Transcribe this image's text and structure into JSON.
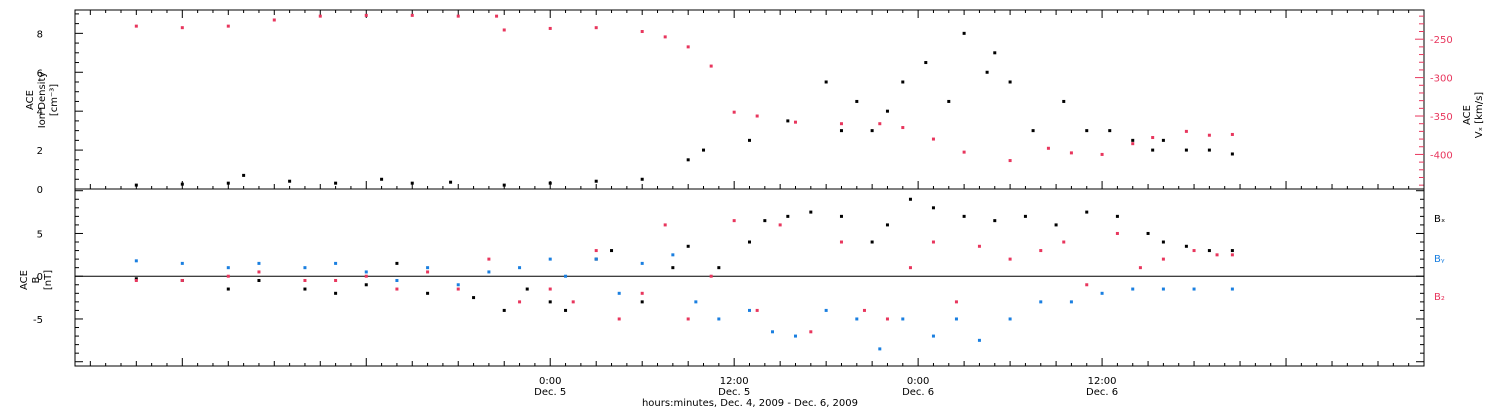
{
  "colors": {
    "black_series": "#000000",
    "red_series": "#e8365d",
    "blue_series": "#1a7fe0"
  },
  "chart_data": [
    {
      "type": "scatter",
      "panel": "top",
      "ylabel_lines": [
        "ACE",
        "Ion Density",
        "[cm⁻³]"
      ],
      "y_ticks": [
        "0",
        "2",
        "4",
        "6",
        "8"
      ],
      "ylim": [
        0,
        9.2
      ],
      "y2label_lines": [
        "ACE",
        "Vₓ [km/s]"
      ],
      "y2_ticks": [
        "-250",
        "-300",
        "-350",
        "-400"
      ],
      "y2lim": [
        -445,
        -212
      ],
      "series": [
        {
          "axis": "left",
          "color": "black",
          "x_hours": [
            -27,
            -24,
            -21,
            -20,
            -17,
            -14,
            -11,
            -9,
            -6.5,
            -3,
            0,
            3,
            6,
            9,
            10,
            13,
            15.5,
            18,
            19,
            20,
            21,
            22,
            23,
            24.5,
            26,
            27,
            28.5,
            29,
            30,
            31.5,
            33.5,
            35,
            36.5,
            38,
            39.3,
            40,
            41.5,
            43,
            44.5
          ],
          "values": [
            0.2,
            0.25,
            0.3,
            0.7,
            0.4,
            0.3,
            0.5,
            0.3,
            0.35,
            0.2,
            0.3,
            0.4,
            0.5,
            1.5,
            2.0,
            2.5,
            3.5,
            5.5,
            3.0,
            4.5,
            3.0,
            4.0,
            5.5,
            6.5,
            4.5,
            8.0,
            6.0,
            7.0,
            5.5,
            3.0,
            4.5,
            3.0,
            3.0,
            2.5,
            2.0,
            2.5,
            2.0,
            2.0,
            1.8
          ]
        },
        {
          "axis": "right",
          "color": "red",
          "x_hours": [
            -27,
            -24,
            -21,
            -18,
            -15,
            -12,
            -9,
            -6,
            -3.5,
            -3,
            0,
            3,
            6,
            7.5,
            9,
            10.5,
            12,
            13.5,
            16,
            19,
            21.5,
            23,
            25,
            27,
            30,
            32.5,
            34,
            36,
            38,
            39.3,
            41.5,
            43,
            44.5
          ],
          "values": [
            -233,
            -235,
            -233,
            -225,
            -220,
            -219,
            -219,
            -220,
            -220,
            -238,
            -236,
            -235,
            -240,
            -247,
            -260,
            -285,
            -345,
            -350,
            -358,
            -360,
            -360,
            -365,
            -380,
            -397,
            -408,
            -392,
            -398,
            -400,
            -386,
            -378,
            -370,
            -375,
            -374
          ]
        }
      ]
    },
    {
      "type": "scatter",
      "panel": "bottom",
      "ylabel_lines": [
        "ACE",
        "B",
        "[nT]"
      ],
      "y_ticks": [
        "5",
        "0",
        "-5"
      ],
      "ylim": [
        -10.5,
        10.2
      ],
      "zero_line": true,
      "legend": [
        "Bₓ",
        "Bᵧ",
        "B₂"
      ],
      "legend_placement": "right",
      "series": [
        {
          "name": "Bₓ",
          "color": "black",
          "x_hours": [
            -27,
            -24,
            -21,
            -19,
            -16,
            -14,
            -12,
            -10,
            -8,
            -5,
            -3,
            -1.5,
            0,
            1,
            3,
            4,
            6,
            8,
            9,
            11,
            13,
            14,
            15.5,
            17,
            19,
            21,
            22,
            23.5,
            25,
            27,
            29,
            31,
            33,
            35,
            37,
            39,
            40,
            41.5,
            43,
            44.5
          ],
          "values": [
            -0.3,
            -0.5,
            -1.5,
            -0.5,
            -1.5,
            -2.0,
            -1.0,
            1.5,
            -2.0,
            -2.5,
            -4.0,
            -1.5,
            -3.0,
            -4.0,
            2.0,
            3.0,
            -3.0,
            1.0,
            3.5,
            1.0,
            4.0,
            6.5,
            7.0,
            7.5,
            7.0,
            4.0,
            6.0,
            9.0,
            8.0,
            7.0,
            6.5,
            7.0,
            6.0,
            7.5,
            7.0,
            5.0,
            4.0,
            3.5,
            3.0,
            3.0
          ]
        },
        {
          "name": "Bᵧ",
          "color": "blue",
          "x_hours": [
            -27,
            -24,
            -21,
            -19,
            -16,
            -14,
            -12,
            -10,
            -8,
            -6,
            -4,
            -2,
            0,
            1,
            3,
            4.5,
            6,
            8,
            9.5,
            11,
            13,
            14.5,
            16,
            18,
            20,
            21.5,
            23,
            25,
            26.5,
            28,
            30,
            32,
            34,
            36,
            38,
            40,
            42,
            44.5
          ],
          "values": [
            1.8,
            1.5,
            1.0,
            1.5,
            1.0,
            1.5,
            0.5,
            -0.5,
            1.0,
            -1.0,
            0.5,
            1.0,
            2.0,
            0.0,
            2.0,
            -2.0,
            1.5,
            2.5,
            -3.0,
            -5.0,
            -4.0,
            -6.5,
            -7.0,
            -4.0,
            -5.0,
            -8.5,
            -5.0,
            -7.0,
            -5.0,
            -7.5,
            -5.0,
            -3.0,
            -3.0,
            -2.0,
            -1.5,
            -1.5,
            -1.5,
            -1.5
          ]
        },
        {
          "name": "B₂",
          "color": "red",
          "x_hours": [
            -27,
            -24,
            -21,
            -19,
            -16,
            -14,
            -12,
            -10,
            -8,
            -6,
            -4,
            -2,
            0,
            1.5,
            3,
            4.5,
            6,
            7.5,
            9,
            10.5,
            12,
            13.5,
            15,
            17,
            19,
            20.5,
            22,
            23.5,
            25,
            26.5,
            28,
            30,
            32,
            33.5,
            35,
            37,
            38.5,
            40,
            42,
            43.5,
            44.5
          ],
          "values": [
            -0.5,
            -0.5,
            0.0,
            0.5,
            -0.5,
            -0.5,
            0.0,
            -1.5,
            0.5,
            -1.5,
            2.0,
            -3.0,
            -1.5,
            -3.0,
            3.0,
            -5.0,
            -2.0,
            6.0,
            -5.0,
            0.0,
            6.5,
            -4.0,
            6.0,
            -6.5,
            4.0,
            -4.0,
            -5.0,
            1.0,
            4.0,
            -3.0,
            3.5,
            2.0,
            3.0,
            4.0,
            -1.0,
            5.0,
            1.0,
            2.0,
            3.0,
            2.5,
            2.5
          ]
        }
      ]
    }
  ],
  "x_axis": {
    "xlim_hours": [
      -31,
      57
    ],
    "major_ticks_hours": [
      0,
      12,
      24,
      36
    ],
    "time_labels": [
      "0:00",
      "12:00",
      "0:00",
      "12:00"
    ],
    "date_labels": [
      "Dec. 5",
      "Dec. 5",
      "Dec. 6",
      "Dec. 6"
    ],
    "xlabel": "hours:minutes, Dec.  4, 2009 - Dec.  6, 2009"
  }
}
